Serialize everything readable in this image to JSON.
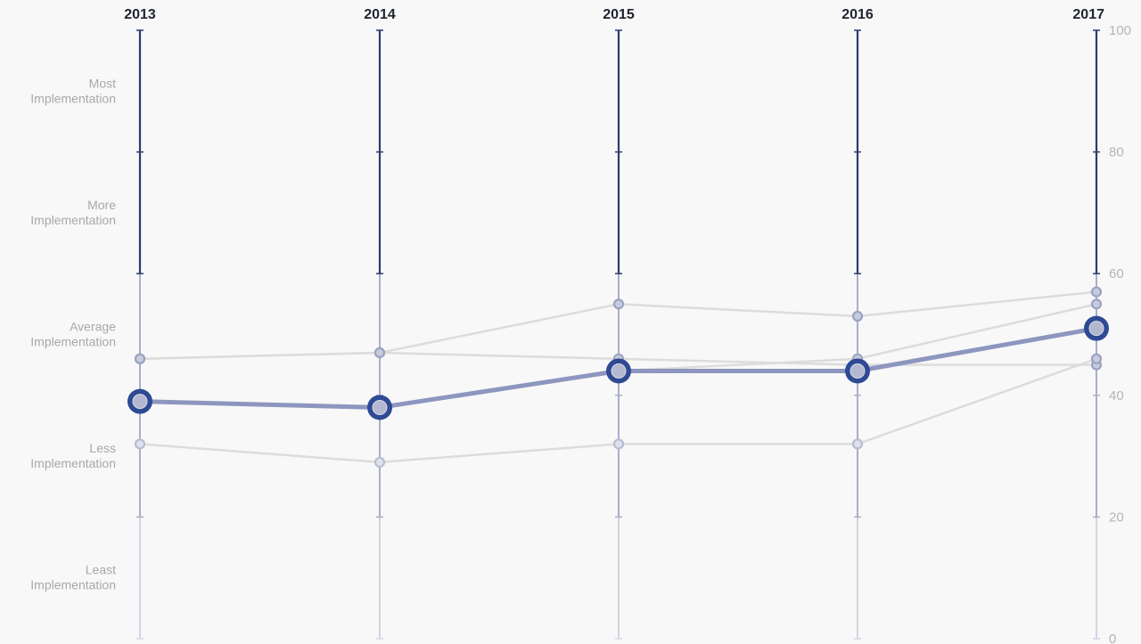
{
  "chart_data": {
    "type": "line",
    "x": [
      "2013",
      "2014",
      "2015",
      "2016",
      "2017"
    ],
    "ylim": [
      0,
      100
    ],
    "y_ticks": [
      "0",
      "20",
      "40",
      "60",
      "80",
      "100"
    ],
    "bands": [
      {
        "line1": "Most",
        "line2": "Implementation",
        "min": 80,
        "max": 100
      },
      {
        "line1": "More",
        "line2": "Implementation",
        "min": 60,
        "max": 80
      },
      {
        "line1": "Average",
        "line2": "Implementation",
        "min": 40,
        "max": 60
      },
      {
        "line1": "Less",
        "line2": "Implementation",
        "min": 20,
        "max": 40
      },
      {
        "line1": "Least",
        "line2": "Implementation",
        "min": 0,
        "max": 20
      }
    ],
    "highlight_series": {
      "values": [
        39,
        38,
        44,
        44,
        51
      ]
    },
    "background_series": [
      {
        "values": [
          46,
          47,
          55,
          53,
          57
        ]
      },
      {
        "values": [
          46,
          47,
          46,
          45,
          45
        ]
      },
      {
        "values": [
          32,
          29,
          32,
          32,
          46
        ]
      },
      {
        "values": [
          null,
          null,
          44,
          46,
          55
        ]
      }
    ],
    "colors": {
      "highlight": "#2e4a94",
      "highlight_line": "#8d96bf",
      "background_line": "#dcdcdc",
      "background_point": "#9aa3c4",
      "axis_top": "#2e3b6e",
      "axis_mid": "#a9aecb",
      "axis_low": "#d3d5e3"
    }
  }
}
